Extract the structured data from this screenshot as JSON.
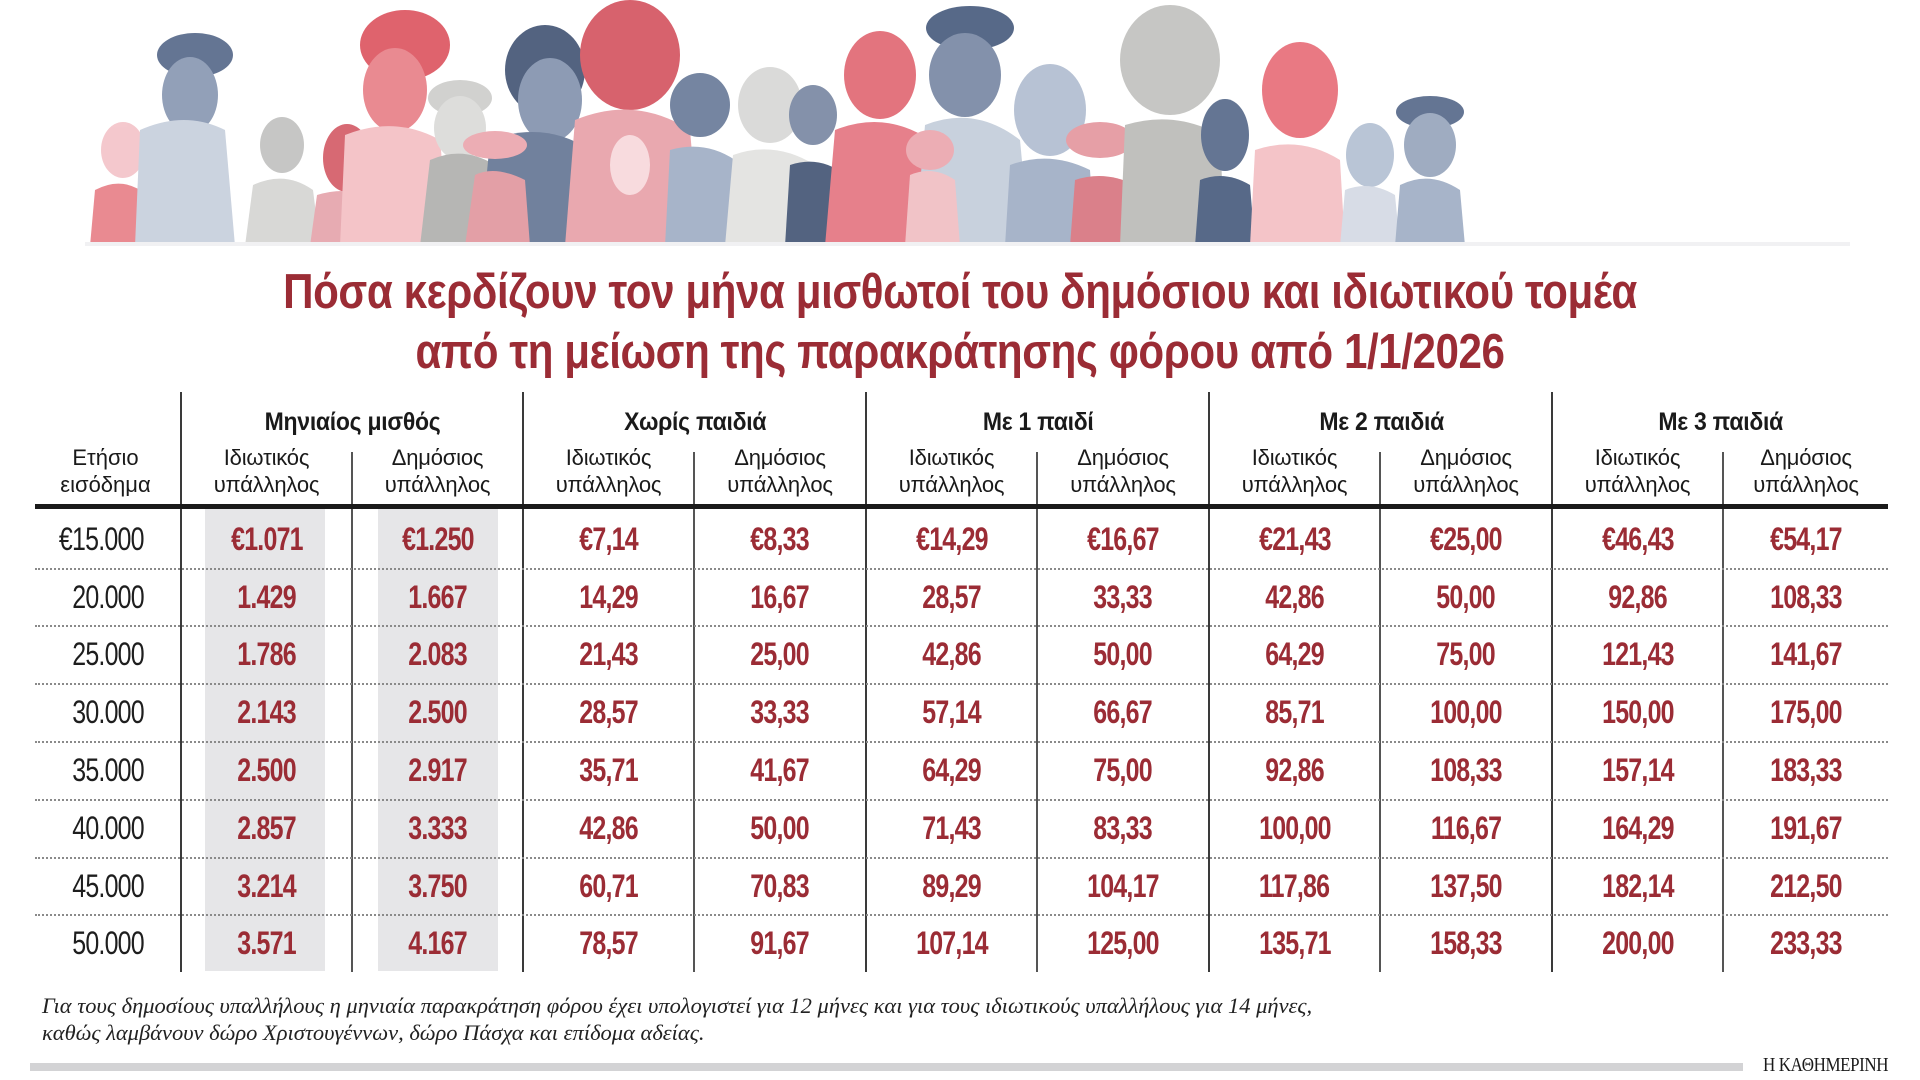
{
  "illustration": {
    "description": "Row of stylized worker silhouettes (various professions) in red, pink, slate blue and gray tones",
    "colors": [
      "#e05a66",
      "#e8848c",
      "#f1b4ba",
      "#f8dadd",
      "#4f6282",
      "#6e7f9c",
      "#a3b1c7",
      "#c9d1de",
      "#b3b3b0",
      "#d6d6d4"
    ]
  },
  "title": {
    "line1": "Πόσα κερδίζουν τον μήνα μισθωτοί του δημόσιου και ιδιωτικού τομέα",
    "line2": "από τη μείωση της παρακράτησης φόρου από 1/1/2026"
  },
  "table": {
    "row_header": {
      "line1": "Ετήσιο",
      "line2": "εισόδημα"
    },
    "groups": [
      {
        "label": "Μηνιαίος μισθός"
      },
      {
        "label": "Χωρίς παιδιά"
      },
      {
        "label": "Με 1 παιδί"
      },
      {
        "label": "Με 2 παιδιά"
      },
      {
        "label": "Με 3 παιδιά"
      }
    ],
    "sub_private": {
      "line1": "Ιδιωτικός",
      "line2": "υπάλληλος"
    },
    "sub_public": {
      "line1": "Δημόσιος",
      "line2": "υπάλληλος"
    },
    "rows": [
      {
        "income": "€15.000",
        "values": [
          "€1.071",
          "€1.250",
          "€7,14",
          "€8,33",
          "€14,29",
          "€16,67",
          "€21,43",
          "€25,00",
          "€46,43",
          "€54,17"
        ]
      },
      {
        "income": "20.000",
        "values": [
          "1.429",
          "1.667",
          "14,29",
          "16,67",
          "28,57",
          "33,33",
          "42,86",
          "50,00",
          "92,86",
          "108,33"
        ]
      },
      {
        "income": "25.000",
        "values": [
          "1.786",
          "2.083",
          "21,43",
          "25,00",
          "42,86",
          "50,00",
          "64,29",
          "75,00",
          "121,43",
          "141,67"
        ]
      },
      {
        "income": "30.000",
        "values": [
          "2.143",
          "2.500",
          "28,57",
          "33,33",
          "57,14",
          "66,67",
          "85,71",
          "100,00",
          "150,00",
          "175,00"
        ]
      },
      {
        "income": "35.000",
        "values": [
          "2.500",
          "2.917",
          "35,71",
          "41,67",
          "64,29",
          "75,00",
          "92,86",
          "108,33",
          "157,14",
          "183,33"
        ]
      },
      {
        "income": "40.000",
        "values": [
          "2.857",
          "3.333",
          "42,86",
          "50,00",
          "71,43",
          "83,33",
          "100,00",
          "116,67",
          "164,29",
          "191,67"
        ]
      },
      {
        "income": "45.000",
        "values": [
          "3.214",
          "3.750",
          "60,71",
          "70,83",
          "89,29",
          "104,17",
          "117,86",
          "137,50",
          "182,14",
          "212,50"
        ]
      },
      {
        "income": "50.000",
        "values": [
          "3.571",
          "4.167",
          "78,57",
          "91,67",
          "107,14",
          "125,00",
          "135,71",
          "158,33",
          "200,00",
          "233,33"
        ]
      }
    ]
  },
  "footer": {
    "note_line1": "Για τους δημοσίους υπαλλήλους η μηνιαία παρακράτηση φόρου έχει υπολογιστεί για 12 μήνες και για τους ιδιωτικούς υπαλλήλους για 14 μήνες,",
    "note_line2": "καθώς λαμβάνουν δώρο Χριστουγέννων, δώρο Πάσχα και επίδομα αδείας.",
    "brand": "Η ΚΑΘΗΜΕΡΙΝΗ"
  },
  "colors": {
    "accent": "#9b2c35",
    "text": "#1a1a1a",
    "shade": "#e6e6e8",
    "footer_bar": "#d3d3d5"
  },
  "chart_data": {
    "type": "table",
    "title": "Πόσα κερδίζουν τον μήνα μισθωτοί του δημόσιου και ιδιωτικού τομέα από τη μείωση της παρακράτησης φόρου από 1/1/2026",
    "row_label": "Ετήσιο εισόδημα",
    "columns": [
      "Μηνιαίος μισθός - Ιδιωτικός υπάλληλος",
      "Μηνιαίος μισθός - Δημόσιος υπάλληλος",
      "Χωρίς παιδιά - Ιδιωτικός υπάλληλος",
      "Χωρίς παιδιά - Δημόσιος υπάλληλος",
      "Με 1 παιδί - Ιδιωτικός υπάλληλος",
      "Με 1 παιδί - Δημόσιος υπάλληλος",
      "Με 2 παιδιά - Ιδιωτικός υπάλληλος",
      "Με 2 παιδιά - Δημόσιος υπάλληλος",
      "Με 3 παιδιά - Ιδιωτικός υπάλληλος",
      "Με 3 παιδιά - Δημόσιος υπάλληλος"
    ],
    "categories": [
      15000,
      20000,
      25000,
      30000,
      35000,
      40000,
      45000,
      50000
    ],
    "unit": "EUR",
    "series": [
      {
        "name": "Μηνιαίος μισθός - Ιδιωτικός",
        "values": [
          1071,
          1429,
          1786,
          2143,
          2500,
          2857,
          3214,
          3571
        ]
      },
      {
        "name": "Μηνιαίος μισθός - Δημόσιος",
        "values": [
          1250,
          1667,
          2083,
          2500,
          2917,
          3333,
          3750,
          4167
        ]
      },
      {
        "name": "Χωρίς παιδιά - Ιδιωτικός",
        "values": [
          7.14,
          14.29,
          21.43,
          28.57,
          35.71,
          42.86,
          60.71,
          78.57
        ]
      },
      {
        "name": "Χωρίς παιδιά - Δημόσιος",
        "values": [
          8.33,
          16.67,
          25.0,
          33.33,
          41.67,
          50.0,
          70.83,
          91.67
        ]
      },
      {
        "name": "Με 1 παιδί - Ιδιωτικός",
        "values": [
          14.29,
          28.57,
          42.86,
          57.14,
          64.29,
          71.43,
          89.29,
          107.14
        ]
      },
      {
        "name": "Με 1 παιδί - Δημόσιος",
        "values": [
          16.67,
          33.33,
          50.0,
          66.67,
          75.0,
          83.33,
          104.17,
          125.0
        ]
      },
      {
        "name": "Με 2 παιδιά - Ιδιωτικός",
        "values": [
          21.43,
          42.86,
          64.29,
          85.71,
          92.86,
          100.0,
          117.86,
          135.71
        ]
      },
      {
        "name": "Με 2 παιδιά - Δημόσιος",
        "values": [
          25.0,
          50.0,
          75.0,
          100.0,
          108.33,
          116.67,
          137.5,
          158.33
        ]
      },
      {
        "name": "Με 3 παιδιά - Ιδιωτικός",
        "values": [
          46.43,
          92.86,
          121.43,
          150.0,
          157.14,
          164.29,
          182.14,
          200.0
        ]
      },
      {
        "name": "Με 3 παιδιά - Δημόσιος",
        "values": [
          54.17,
          108.33,
          141.67,
          175.0,
          183.33,
          191.67,
          212.5,
          233.33
        ]
      }
    ],
    "notes": "Για τους δημοσίους υπαλλήλους η μηνιαία παρακράτηση φόρου έχει υπολογιστεί για 12 μήνες και για τους ιδιωτικούς υπαλλήλους για 14 μήνες, καθώς λαμβάνουν δώρο Χριστουγέννων, δώρο Πάσχα και επίδομα αδείας.",
    "source": "Η ΚΑΘΗΜΕΡΙΝΗ"
  }
}
